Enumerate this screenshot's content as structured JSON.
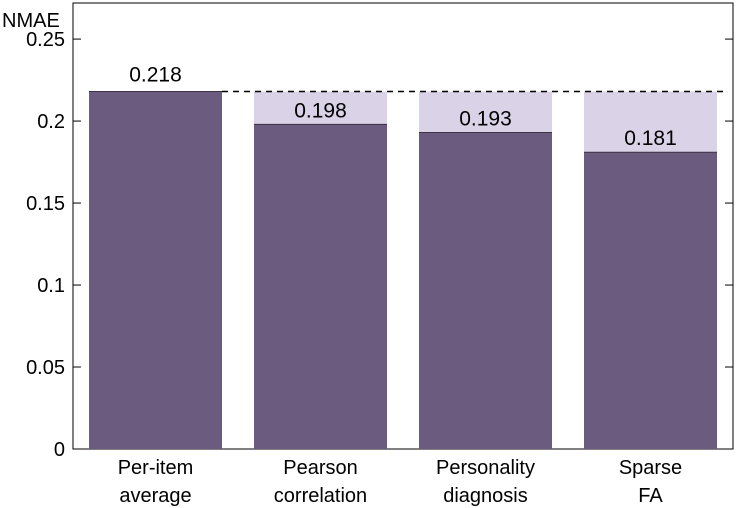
{
  "chart_data": {
    "type": "bar",
    "ylabel": "NMAE",
    "ylim": [
      0,
      0.272
    ],
    "yticks": [
      {
        "value": 0,
        "label": "0"
      },
      {
        "value": 0.05,
        "label": "0.05"
      },
      {
        "value": 0.1,
        "label": "0.1"
      },
      {
        "value": 0.15,
        "label": "0.15"
      },
      {
        "value": 0.2,
        "label": "0.2"
      },
      {
        "value": 0.25,
        "label": "0.25"
      }
    ],
    "categories": [
      [
        "Per-item",
        "average"
      ],
      [
        "Pearson",
        "correlation"
      ],
      [
        "Personality",
        "diagnosis"
      ],
      [
        "Sparse",
        "FA"
      ]
    ],
    "values": [
      0.218,
      0.198,
      0.193,
      0.181
    ],
    "value_labels": [
      "0.218",
      "0.198",
      "0.193",
      "0.181"
    ],
    "baseline_value": 0.218,
    "grid": false,
    "colors": {
      "bar": "#6b5b7e",
      "gap": "#dad2e6",
      "axis": "#000000"
    }
  }
}
